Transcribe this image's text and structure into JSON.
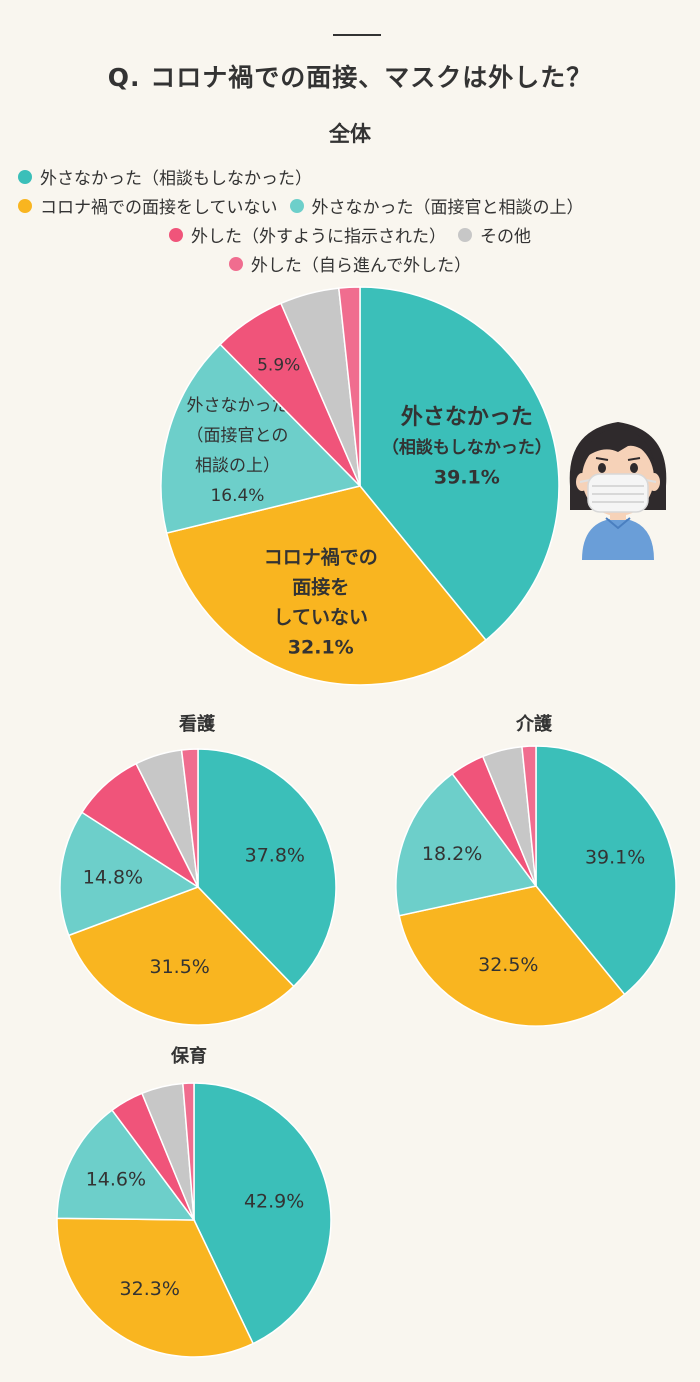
{
  "header": {
    "title": "Q. コロナ禍での面接、マスクは外した？",
    "subtitle": "全体"
  },
  "colors": {
    "teal": "#3bbfb9",
    "yellow": "#f9b520",
    "light_teal": "#6dcfca",
    "red": "#f0547a",
    "gray": "#c7c7c7",
    "pink": "#f06d8f"
  },
  "legend": {
    "items": [
      {
        "label": "外さなかった（相談もしなかった）",
        "color": "#3bbfb9"
      },
      {
        "label": "コロナ禍での面接をしていない",
        "color": "#f9b520"
      },
      {
        "label": "外さなかった（面接官と相談の上）",
        "color": "#6dcfca"
      },
      {
        "label": "外した（外すように指示された）",
        "color": "#f0547a"
      },
      {
        "label": "その他",
        "color": "#c7c7c7"
      },
      {
        "label": "外した（自ら進んで外した）",
        "color": "#f06d8f"
      }
    ]
  },
  "illustration": "masked-girl-icon",
  "chart_data": [
    {
      "type": "pie",
      "title": "全体",
      "categories": [
        "外さなかった（相談もしなかった）",
        "コロナ禍での面接をしていない",
        "外さなかった（面接官と相談の上）",
        "外した（外すように指示された）",
        "その他",
        "外した（自ら進んで外した）"
      ],
      "values": [
        39.1,
        32.1,
        16.4,
        5.9,
        4.8,
        1.7
      ],
      "labels": [
        [
          "外さなかった",
          "（相談もしなかった）",
          "39.1%"
        ],
        [
          "コロナ禍での",
          "面接を",
          "していない",
          "32.1%"
        ],
        [
          "外さなかった",
          "（面接官との",
          "相談の上）",
          "16.4%"
        ],
        [
          "5.9%"
        ],
        [],
        []
      ]
    },
    {
      "type": "pie",
      "title": "看護",
      "categories": [
        "外さなかった（相談もしなかった）",
        "コロナ禍での面接をしていない",
        "外さなかった（面接官と相談の上）",
        "外した（外すように指示された）",
        "その他",
        "外した（自ら進んで外した）"
      ],
      "values": [
        37.8,
        31.5,
        14.8,
        8.5,
        5.5,
        1.9
      ],
      "labels": [
        [
          "37.8%"
        ],
        [
          "31.5%"
        ],
        [
          "14.8%"
        ],
        [],
        [],
        []
      ]
    },
    {
      "type": "pie",
      "title": "介護",
      "categories": [
        "外さなかった（相談もしなかった）",
        "コロナ禍での面接をしていない",
        "外さなかった（面接官と相談の上）",
        "外した（外すように指示された）",
        "その他",
        "外した（自ら進んで外した）"
      ],
      "values": [
        39.1,
        32.5,
        18.2,
        4.0,
        4.6,
        1.6
      ],
      "labels": [
        [
          "39.1%"
        ],
        [
          "32.5%"
        ],
        [
          "18.2%"
        ],
        [],
        [],
        []
      ]
    },
    {
      "type": "pie",
      "title": "保育",
      "categories": [
        "外さなかった（相談もしなかった）",
        "コロナ禍での面接をしていない",
        "外さなかった（面接官と相談の上）",
        "外した（外すように指示された）",
        "その他",
        "外した（自ら進んで外した）"
      ],
      "values": [
        42.9,
        32.3,
        14.6,
        4.0,
        4.9,
        1.3
      ],
      "labels": [
        [
          "42.9%"
        ],
        [
          "32.3%"
        ],
        [
          "14.6%"
        ],
        [],
        [],
        []
      ]
    }
  ]
}
